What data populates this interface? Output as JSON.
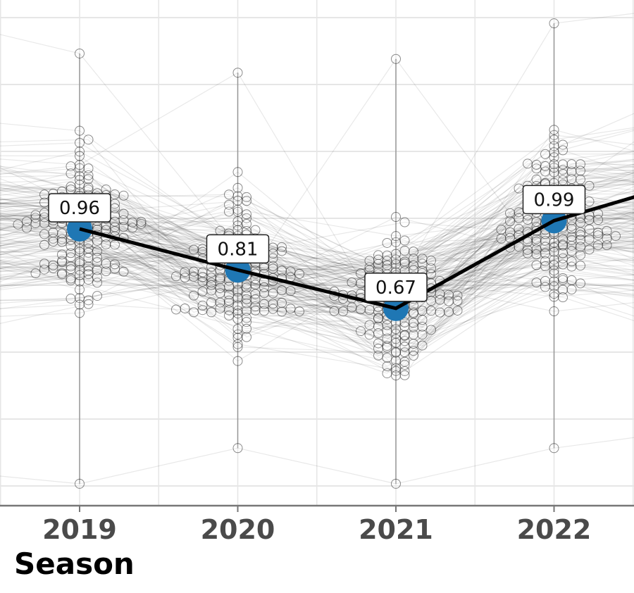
{
  "chart_data": {
    "type": "line",
    "title": "",
    "xlabel": "Season",
    "ylabel": "",
    "categories": [
      "2019",
      "2020",
      "2021",
      "2022"
    ],
    "series": [
      {
        "values": [
          0.96,
          0.81,
          0.67,
          0.99
        ],
        "labels": [
          "0.96",
          "0.81",
          "0.67",
          "0.99"
        ],
        "color": "#1f77b4",
        "line_color": "#000000"
      }
    ],
    "line_continues_right_to_value": 1.16,
    "individual_points": {
      "style": "beeswarm of hollow gray circles joined across seasons by faint gray lines",
      "ranges": [
        [
          0.03,
          1.6
        ],
        [
          0.16,
          1.53
        ],
        [
          0.03,
          1.58
        ],
        [
          0.16,
          1.71
        ]
      ]
    },
    "ylim": [
      -0.05,
      1.8
    ],
    "grid": true
  }
}
